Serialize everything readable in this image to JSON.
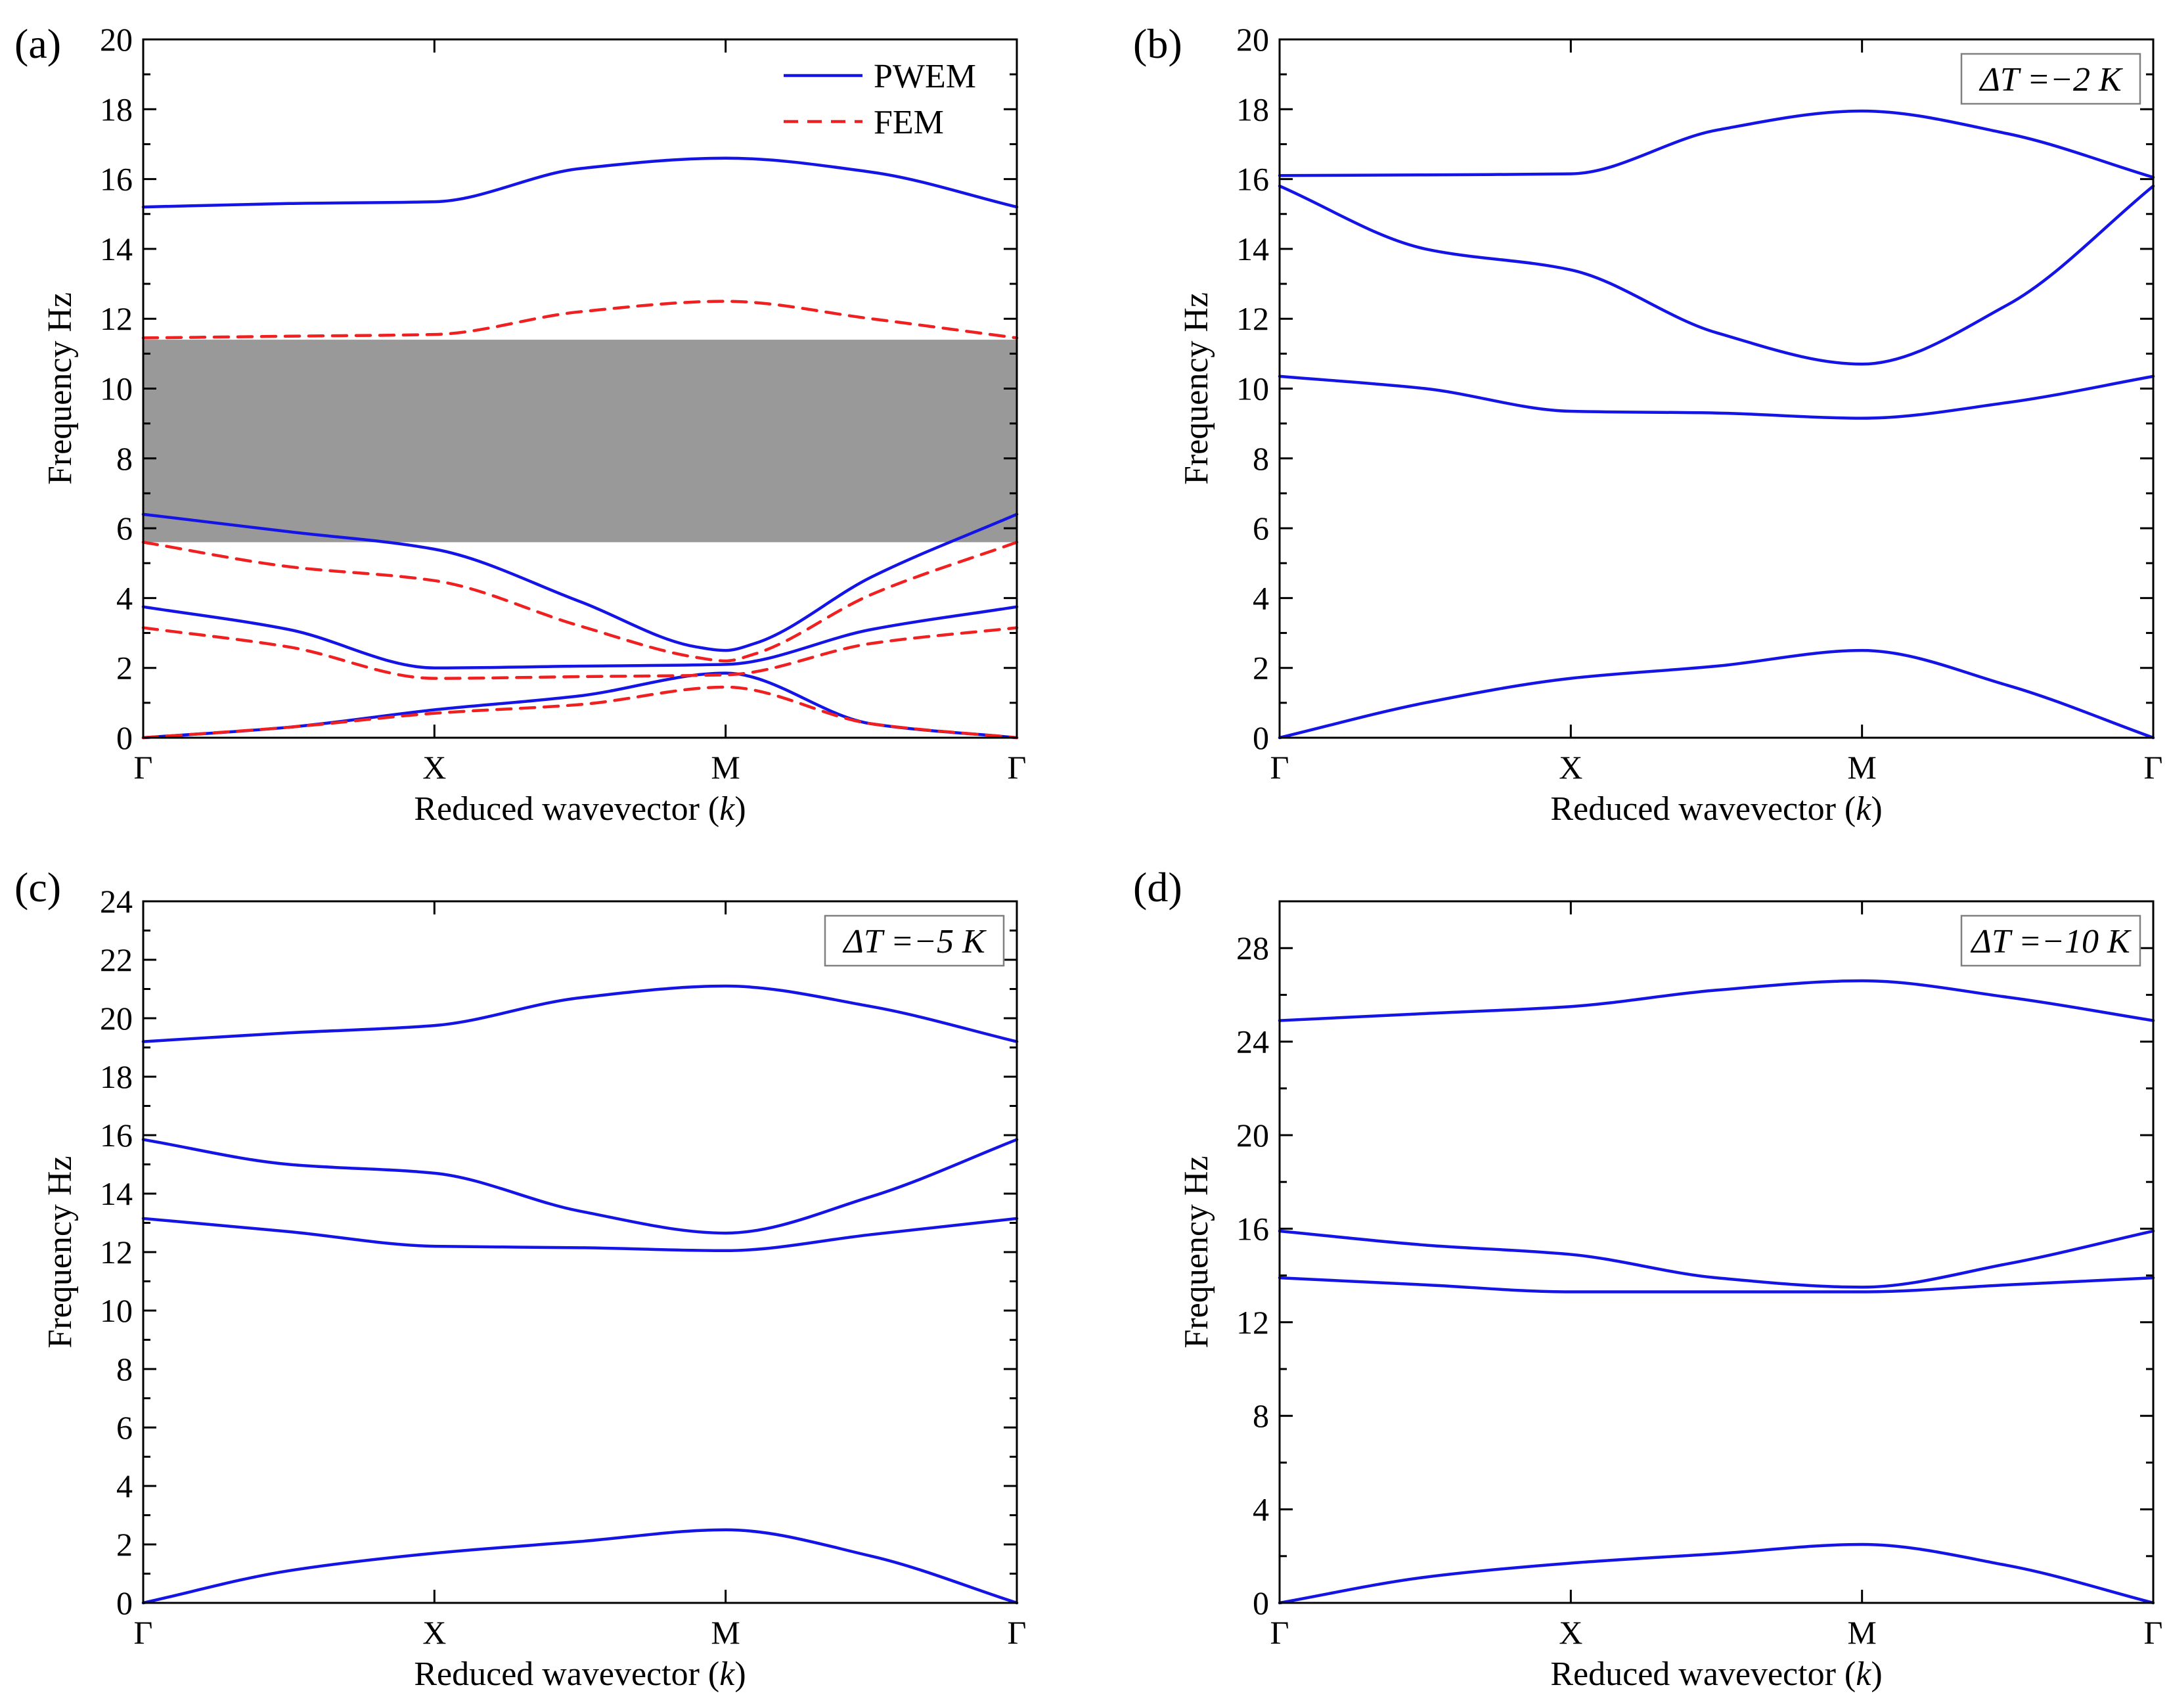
{
  "figure": {
    "title": ""
  },
  "legend": {
    "items": [
      {
        "label": "PWEM",
        "color": "#1414E6",
        "dash": "solid"
      },
      {
        "label": "FEM",
        "color": "#F02020",
        "dash": "dashed"
      }
    ]
  },
  "colors": {
    "pwem": "#1414E6",
    "fem": "#F02020",
    "bandgap": "#999999"
  },
  "chart_data": [
    {
      "panel": "(a)",
      "type": "line",
      "x_ticks": [
        "Γ",
        "X",
        "M",
        "Γ"
      ],
      "xlabel_prefix": "Reduced wavevector (",
      "xlabel_var": "k",
      "xlabel_suffix": ")",
      "ylabel": "Frequency Hz",
      "ylim": [
        0,
        20
      ],
      "y_ticks": [
        0,
        2,
        4,
        6,
        8,
        10,
        12,
        14,
        16,
        18,
        20
      ],
      "bandgap": [
        5.6,
        11.4
      ],
      "annotation": "",
      "legend": true,
      "series": [
        {
          "name": "PWEM",
          "style": "pwem",
          "x": [
            0,
            0.5,
            1,
            1.5,
            2,
            2.5,
            3
          ],
          "y": [
            15.2,
            15.3,
            15.35,
            16.3,
            16.6,
            16.2,
            15.2
          ]
        },
        {
          "name": "PWEM",
          "style": "pwem",
          "x": [
            0,
            0.5,
            1,
            1.5,
            1.9,
            2,
            2.1,
            2.5,
            3
          ],
          "y": [
            6.4,
            5.9,
            5.4,
            3.9,
            2.6,
            2.5,
            2.7,
            4.6,
            6.4
          ]
        },
        {
          "name": "PWEM",
          "style": "pwem",
          "x": [
            0,
            0.5,
            1,
            1.5,
            2,
            2.5,
            3
          ],
          "y": [
            3.75,
            3.1,
            2.0,
            2.05,
            2.1,
            3.1,
            3.75
          ]
        },
        {
          "name": "PWEM",
          "style": "pwem",
          "x": [
            0,
            0.5,
            1,
            1.5,
            2,
            2.5,
            3
          ],
          "y": [
            0.0,
            0.3,
            0.8,
            1.2,
            1.85,
            0.4,
            0.0
          ]
        },
        {
          "name": "FEM",
          "style": "fem",
          "x": [
            0,
            0.5,
            1,
            1.5,
            2,
            2.5,
            3
          ],
          "y": [
            11.45,
            11.5,
            11.55,
            12.2,
            12.5,
            12.0,
            11.45
          ]
        },
        {
          "name": "FEM",
          "style": "fem",
          "x": [
            0,
            0.5,
            1,
            1.5,
            1.9,
            2,
            2.1,
            2.5,
            3
          ],
          "y": [
            5.6,
            4.9,
            4.5,
            3.2,
            2.3,
            2.2,
            2.4,
            4.1,
            5.6
          ]
        },
        {
          "name": "FEM",
          "style": "fem",
          "x": [
            0,
            0.5,
            1,
            1.5,
            2,
            2.5,
            3
          ],
          "y": [
            3.15,
            2.6,
            1.7,
            1.75,
            1.8,
            2.7,
            3.15
          ]
        },
        {
          "name": "FEM",
          "style": "fem",
          "x": [
            0,
            0.5,
            1,
            1.5,
            2,
            2.5,
            3
          ],
          "y": [
            0.0,
            0.3,
            0.7,
            0.95,
            1.45,
            0.4,
            0.0
          ]
        }
      ]
    },
    {
      "panel": "(b)",
      "type": "line",
      "x_ticks": [
        "Γ",
        "X",
        "M",
        "Γ"
      ],
      "xlabel_prefix": "Reduced wavevector (",
      "xlabel_var": "k",
      "xlabel_suffix": ")",
      "ylabel": "Frequency Hz",
      "ylim": [
        0,
        20
      ],
      "y_ticks": [
        0,
        2,
        4,
        6,
        8,
        10,
        12,
        14,
        16,
        18,
        20
      ],
      "bandgap": null,
      "annotation": "ΔT =−2 K",
      "legend": false,
      "series": [
        {
          "name": "PWEM",
          "style": "pwem",
          "x": [
            0,
            0.5,
            1,
            1.5,
            2,
            2.5,
            3
          ],
          "y": [
            16.1,
            16.12,
            16.15,
            17.4,
            17.95,
            17.3,
            16.05
          ]
        },
        {
          "name": "PWEM",
          "style": "pwem",
          "x": [
            0,
            0.5,
            1,
            1.5,
            2,
            2.5,
            3
          ],
          "y": [
            15.8,
            14.0,
            13.4,
            11.6,
            10.7,
            12.4,
            15.8
          ]
        },
        {
          "name": "PWEM",
          "style": "pwem",
          "x": [
            0,
            0.5,
            1,
            1.5,
            2,
            2.5,
            3
          ],
          "y": [
            10.35,
            10.0,
            9.35,
            9.3,
            9.15,
            9.6,
            10.35
          ]
        },
        {
          "name": "PWEM",
          "style": "pwem",
          "x": [
            0,
            0.5,
            1,
            1.5,
            2,
            2.5,
            3
          ],
          "y": [
            0.0,
            1.0,
            1.7,
            2.05,
            2.5,
            1.5,
            0.0
          ]
        }
      ]
    },
    {
      "panel": "(c)",
      "type": "line",
      "x_ticks": [
        "Γ",
        "X",
        "M",
        "Γ"
      ],
      "xlabel_prefix": "Reduced wavevector (",
      "xlabel_var": "k",
      "xlabel_suffix": ")",
      "ylabel": "Frequency Hz",
      "ylim": [
        0,
        24
      ],
      "y_ticks": [
        0,
        2,
        4,
        6,
        8,
        10,
        12,
        14,
        16,
        18,
        20,
        22,
        24
      ],
      "bandgap": null,
      "annotation": "ΔT =−5 K",
      "legend": false,
      "series": [
        {
          "name": "PWEM",
          "style": "pwem",
          "x": [
            0,
            0.5,
            1,
            1.5,
            2,
            2.5,
            3
          ],
          "y": [
            19.2,
            19.5,
            19.75,
            20.7,
            21.1,
            20.4,
            19.2
          ]
        },
        {
          "name": "PWEM",
          "style": "pwem",
          "x": [
            0,
            0.5,
            1,
            1.5,
            2,
            2.5,
            3
          ],
          "y": [
            15.85,
            15.0,
            14.7,
            13.4,
            12.65,
            13.9,
            15.85
          ]
        },
        {
          "name": "PWEM",
          "style": "pwem",
          "x": [
            0,
            0.5,
            1,
            1.5,
            2,
            2.5,
            3
          ],
          "y": [
            13.15,
            12.7,
            12.2,
            12.15,
            12.05,
            12.6,
            13.15
          ]
        },
        {
          "name": "PWEM",
          "style": "pwem",
          "x": [
            0,
            0.5,
            1,
            1.5,
            2,
            2.5,
            3
          ],
          "y": [
            0.0,
            1.1,
            1.7,
            2.1,
            2.5,
            1.6,
            0.0
          ]
        }
      ]
    },
    {
      "panel": "(d)",
      "type": "line",
      "x_ticks": [
        "Γ",
        "X",
        "M",
        "Γ"
      ],
      "xlabel_prefix": "Reduced wavevector (",
      "xlabel_var": "k",
      "xlabel_suffix": ")",
      "ylabel": "Frequency Hz",
      "ylim": [
        0,
        30
      ],
      "y_ticks": [
        0,
        4,
        8,
        12,
        16,
        20,
        24,
        28
      ],
      "bandgap": null,
      "annotation": "ΔT =−10 K",
      "legend": false,
      "series": [
        {
          "name": "PWEM",
          "style": "pwem",
          "x": [
            0,
            0.5,
            1,
            1.5,
            2,
            2.5,
            3
          ],
          "y": [
            24.9,
            25.2,
            25.5,
            26.2,
            26.6,
            25.9,
            24.9
          ]
        },
        {
          "name": "PWEM",
          "style": "pwem",
          "x": [
            0,
            0.5,
            1,
            1.5,
            2,
            2.5,
            3
          ],
          "y": [
            15.9,
            15.3,
            14.9,
            13.9,
            13.5,
            14.5,
            15.9
          ]
        },
        {
          "name": "PWEM",
          "style": "pwem",
          "x": [
            0,
            0.5,
            1,
            1.5,
            2,
            2.5,
            3
          ],
          "y": [
            13.9,
            13.6,
            13.3,
            13.3,
            13.3,
            13.6,
            13.9
          ]
        },
        {
          "name": "PWEM",
          "style": "pwem",
          "x": [
            0,
            0.5,
            1,
            1.5,
            2,
            2.5,
            3
          ],
          "y": [
            0.0,
            1.1,
            1.7,
            2.1,
            2.5,
            1.6,
            0.0
          ]
        }
      ]
    }
  ]
}
